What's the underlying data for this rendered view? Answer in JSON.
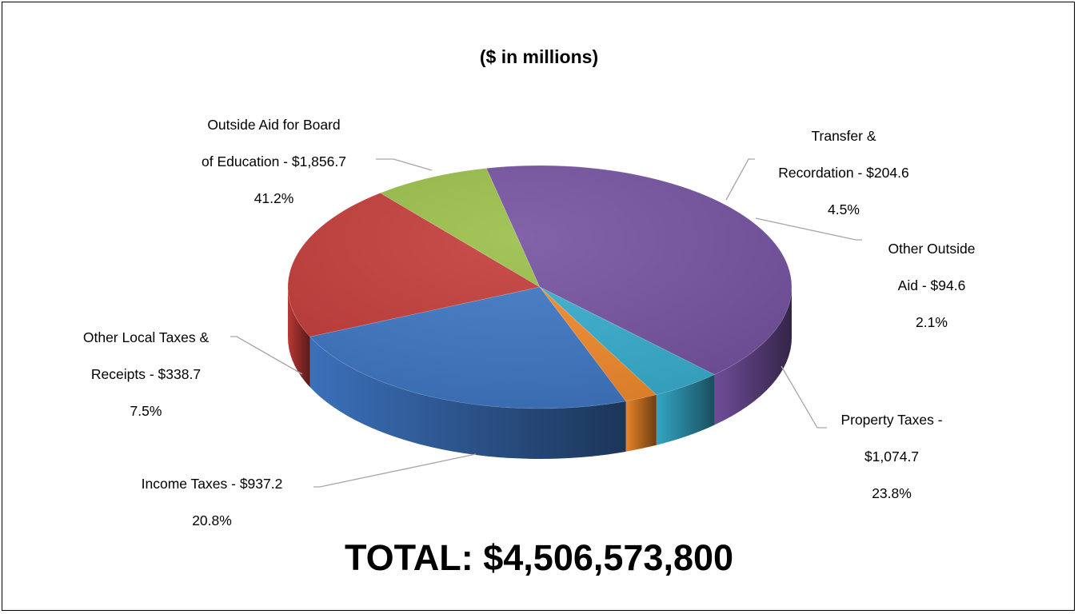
{
  "chart_data": {
    "type": "pie",
    "title": "",
    "subtitle": "($ in millions)",
    "total_label": "TOTAL: $4,506,573,800",
    "slices": [
      {
        "name": "Property Taxes",
        "value": 1074.7,
        "percent": 23.8,
        "label_line1": "Property Taxes -",
        "label_line2": "$1,074.7",
        "label_line3": "23.8%",
        "color": "#3E76C4"
      },
      {
        "name": "Income Taxes",
        "value": 937.2,
        "percent": 20.8,
        "label_line1": "Income Taxes -  $937.2",
        "label_line2": "20.8%",
        "label_line3": "",
        "color": "#C33B38"
      },
      {
        "name": "Other Local Taxes & Receipts",
        "value": 338.7,
        "percent": 7.5,
        "label_line1": "Other Local Taxes &",
        "label_line2": "Receipts -  $338.7",
        "label_line3": "7.5%",
        "color": "#98BE47"
      },
      {
        "name": "Outside Aid for Board of Education",
        "value": 1856.7,
        "percent": 41.2,
        "label_line1": "Outside Aid for Board",
        "label_line2": "of Education -  $1,856.7",
        "label_line3": "41.2%",
        "color": "#7451A0"
      },
      {
        "name": "Transfer & Recordation",
        "value": 204.6,
        "percent": 4.5,
        "label_line1": "Transfer &",
        "label_line2": "Recordation -  $204.6",
        "label_line3": "4.5%",
        "color": "#36AECF"
      },
      {
        "name": "Other Outside Aid",
        "value": 94.6,
        "percent": 2.1,
        "label_line1": "Other Outside",
        "label_line2": "Aid - $94.6",
        "label_line3": "2.1%",
        "color": "#F38A2A"
      }
    ]
  }
}
